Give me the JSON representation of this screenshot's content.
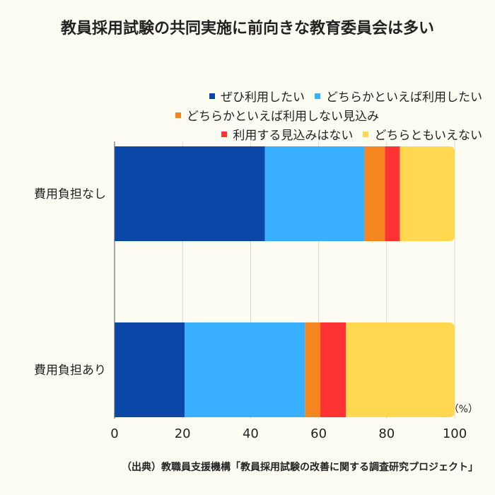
{
  "chart_data": {
    "type": "bar",
    "orientation": "horizontal",
    "stacked": true,
    "title": "教員採用試験の共同実施に前向きな教育委員会は多い",
    "categories": [
      "費用負担なし",
      "費用負担あり"
    ],
    "series": [
      {
        "name": "ぜひ利用したい",
        "color": "#0a47a6",
        "values": [
          44.2,
          20.6
        ]
      },
      {
        "name": "どちらかといえば利用したい",
        "color": "#39b0ff",
        "values": [
          29.3,
          35.4
        ]
      },
      {
        "name": "どちらかといえば利用しない見込み",
        "color": "#f5861f",
        "values": [
          6.0,
          4.5
        ]
      },
      {
        "name": "利用する見込みはない",
        "color": "#ff3333",
        "values": [
          4.4,
          7.5
        ]
      },
      {
        "name": "どちらともいえない",
        "color": "#ffd84f",
        "values": [
          16.1,
          32.0
        ]
      }
    ],
    "xlim": [
      0,
      100
    ],
    "xticks": [
      0,
      20,
      40,
      60,
      80,
      100
    ],
    "unit_label": "（%）",
    "grid": true,
    "legend_position": "top"
  },
  "source": "（出典）教職員支援機構「教員採用試験の改善に関する調査研究プロジェクト」"
}
